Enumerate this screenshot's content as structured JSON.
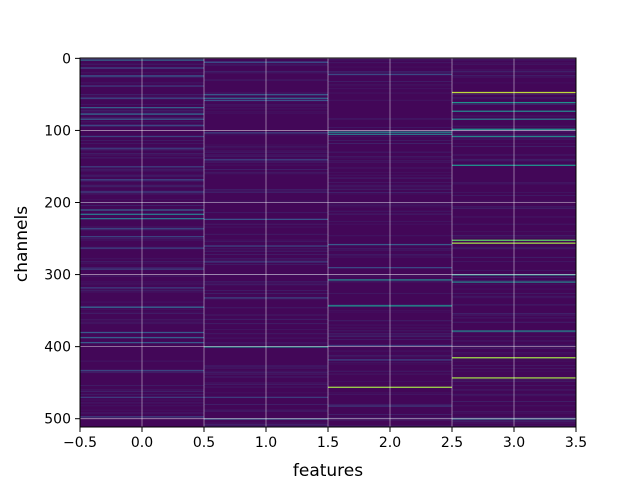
{
  "chart_data": {
    "type": "heatmap",
    "title": "",
    "xlabel": "features",
    "ylabel": "channels",
    "x": [
      0,
      1,
      2,
      3
    ],
    "xlim": [
      -0.5,
      3.5
    ],
    "ylim": [
      511.5,
      -0.5
    ],
    "xticks": [
      "−0.5",
      "0.0",
      "0.5",
      "1.0",
      "1.5",
      "2.0",
      "2.5",
      "3.0",
      "3.5"
    ],
    "yticks": [
      "0",
      "100",
      "200",
      "300",
      "400",
      "500"
    ],
    "channels": 512,
    "grid": true,
    "colormap": "viridis",
    "background_value": 0.02,
    "columns": [
      {
        "feature": 0,
        "highlights": [
          {
            "channel": 2,
            "value": 0.35
          },
          {
            "channel": 13,
            "value": 0.22
          },
          {
            "channel": 24,
            "value": 0.28
          },
          {
            "channel": 38,
            "value": 0.18
          },
          {
            "channel": 55,
            "value": 0.2
          },
          {
            "channel": 68,
            "value": 0.3
          },
          {
            "channel": 77,
            "value": 0.32
          },
          {
            "channel": 84,
            "value": 0.28
          },
          {
            "channel": 93,
            "value": 0.22
          },
          {
            "channel": 108,
            "value": 0.2
          },
          {
            "channel": 125,
            "value": 0.18
          },
          {
            "channel": 150,
            "value": 0.18
          },
          {
            "channel": 168,
            "value": 0.2
          },
          {
            "channel": 185,
            "value": 0.18
          },
          {
            "channel": 210,
            "value": 0.3
          },
          {
            "channel": 216,
            "value": 0.4
          },
          {
            "channel": 222,
            "value": 0.38
          },
          {
            "channel": 236,
            "value": 0.22
          },
          {
            "channel": 247,
            "value": 0.2
          },
          {
            "channel": 263,
            "value": 0.18
          },
          {
            "channel": 292,
            "value": 0.2
          },
          {
            "channel": 318,
            "value": 0.18
          },
          {
            "channel": 345,
            "value": 0.3
          },
          {
            "channel": 380,
            "value": 0.28
          },
          {
            "channel": 387,
            "value": 0.3
          },
          {
            "channel": 394,
            "value": 0.28
          },
          {
            "channel": 433,
            "value": 0.22
          },
          {
            "channel": 470,
            "value": 0.18
          },
          {
            "channel": 497,
            "value": 0.2
          }
        ]
      },
      {
        "feature": 1,
        "highlights": [
          {
            "channel": 5,
            "value": 0.25
          },
          {
            "channel": 50,
            "value": 0.28
          },
          {
            "channel": 55,
            "value": 0.32
          },
          {
            "channel": 58,
            "value": 0.25
          },
          {
            "channel": 103,
            "value": 0.2
          },
          {
            "channel": 140,
            "value": 0.18
          },
          {
            "channel": 223,
            "value": 0.25
          },
          {
            "channel": 260,
            "value": 0.2
          },
          {
            "channel": 282,
            "value": 0.18
          },
          {
            "channel": 332,
            "value": 0.2
          },
          {
            "channel": 400,
            "value": 0.5
          },
          {
            "channel": 470,
            "value": 0.18
          },
          {
            "channel": 500,
            "value": 0.3
          }
        ]
      },
      {
        "feature": 2,
        "highlights": [
          {
            "channel": 22,
            "value": 0.22
          },
          {
            "channel": 102,
            "value": 0.45
          },
          {
            "channel": 105,
            "value": 0.4
          },
          {
            "channel": 258,
            "value": 0.28
          },
          {
            "channel": 290,
            "value": 0.22
          },
          {
            "channel": 307,
            "value": 0.45
          },
          {
            "channel": 343,
            "value": 0.5
          },
          {
            "channel": 398,
            "value": 0.2
          },
          {
            "channel": 418,
            "value": 0.2
          },
          {
            "channel": 456,
            "value": 0.85
          },
          {
            "channel": 482,
            "value": 0.18
          }
        ]
      },
      {
        "feature": 3,
        "highlights": [
          {
            "channel": 47,
            "value": 0.9
          },
          {
            "channel": 61,
            "value": 0.5
          },
          {
            "channel": 73,
            "value": 0.45
          },
          {
            "channel": 84,
            "value": 0.4
          },
          {
            "channel": 98,
            "value": 0.5
          },
          {
            "channel": 108,
            "value": 0.45
          },
          {
            "channel": 148,
            "value": 0.5
          },
          {
            "channel": 252,
            "value": 0.75
          },
          {
            "channel": 256,
            "value": 0.85
          },
          {
            "channel": 300,
            "value": 0.5
          },
          {
            "channel": 310,
            "value": 0.45
          },
          {
            "channel": 378,
            "value": 0.45
          },
          {
            "channel": 415,
            "value": 0.85
          },
          {
            "channel": 443,
            "value": 0.85
          },
          {
            "channel": 500,
            "value": 0.35
          }
        ]
      }
    ]
  }
}
